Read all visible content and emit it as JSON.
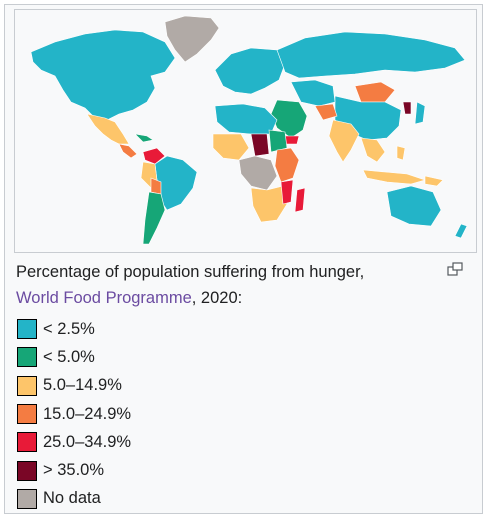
{
  "caption": {
    "line1": "Percentage of population suffering from hunger,",
    "link_text": "World Food Programme",
    "line2_rest": ", 2020:"
  },
  "colors": {
    "ocean": "#f8f9fa",
    "lt2_5": "#23b4c8",
    "lt5": "#16a677",
    "mid5_15": "#fdc56a",
    "mid15_25": "#f47c42",
    "mid25_35": "#e81a38",
    "gt35": "#7a0626",
    "nodata": "#b1aaa6"
  },
  "legend": [
    {
      "label": "< 2.5%",
      "color": "#23b4c8"
    },
    {
      "label": "< 5.0%",
      "color": "#16a677"
    },
    {
      "label": "5.0–14.9%",
      "color": "#fdc56a"
    },
    {
      "label": "15.0–24.9%",
      "color": "#f47c42"
    },
    {
      "label": "25.0–34.9%",
      "color": "#e81a38"
    },
    {
      "label": "> 35.0%",
      "color": "#7a0626"
    },
    {
      "label": "No data",
      "color": "#b1aaa6"
    }
  ],
  "icons": {
    "magnify": "magnify-clip-icon"
  }
}
